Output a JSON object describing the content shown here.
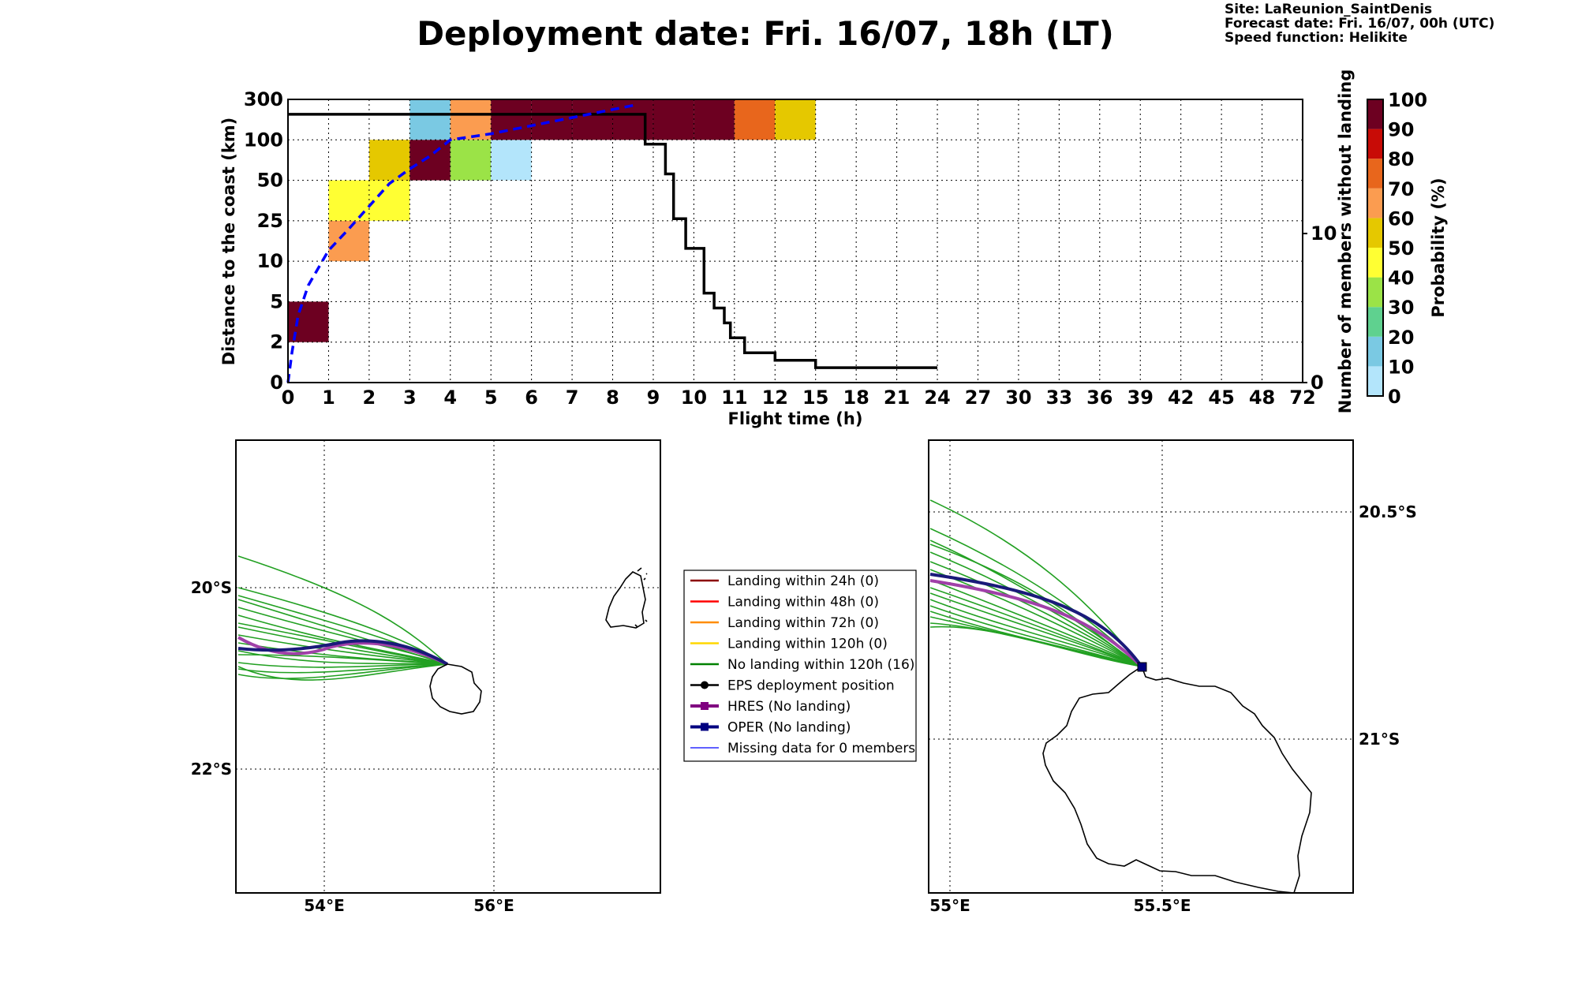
{
  "header": {
    "title": "Deployment date: Fri. 16/07, 18h (LT)",
    "site": "Site: LaReunion_SaintDenis",
    "forecast_date": "Forecast date: Fri. 16/07, 00h (UTC)",
    "speed_function": "Speed function: Helikite"
  },
  "chart_data": [
    {
      "type": "heatmap",
      "xlabel": "Flight time (h)",
      "ylabel": "Distance to the coast (km)",
      "y2label": "Number of members without landing",
      "x_ticks": [
        "0",
        "1",
        "2",
        "3",
        "4",
        "5",
        "6",
        "7",
        "8",
        "9",
        "10",
        "11",
        "12",
        "15",
        "18",
        "21",
        "24",
        "27",
        "30",
        "33",
        "36",
        "39",
        "42",
        "45",
        "48",
        "72"
      ],
      "y_ticks": [
        "0",
        "2",
        "5",
        "10",
        "25",
        "50",
        "100",
        "300"
      ],
      "y2_ticks": [
        "0",
        "10"
      ],
      "y2lim": [
        0,
        19
      ],
      "colorbar": {
        "label": "Probability (%)",
        "ticks": [
          "0",
          "10",
          "20",
          "30",
          "40",
          "50",
          "60",
          "70",
          "80",
          "90",
          "100"
        ],
        "colors": [
          "#b3e5fb",
          "#7ac9e3",
          "#5fd18f",
          "#9be347",
          "#ffff33",
          "#e5c800",
          "#fb9c50",
          "#e8661c",
          "#c80b06",
          "#6d0021"
        ]
      },
      "cells": [
        {
          "t": 0,
          "d": 1,
          "p": 100
        },
        {
          "t": 1,
          "d": 3,
          "p": 60
        },
        {
          "t": 1,
          "d": 4,
          "p": 40
        },
        {
          "t": 2,
          "d": 4,
          "p": 45
        },
        {
          "t": 2,
          "d": 5,
          "p": 55
        },
        {
          "t": 3,
          "d": 5,
          "p": 90
        },
        {
          "t": 3,
          "d": 6,
          "p": 10
        },
        {
          "t": 4,
          "d": 5,
          "p": 35
        },
        {
          "t": 4,
          "d": 6,
          "p": 65
        },
        {
          "t": 5,
          "d": 5,
          "p": 5
        },
        {
          "t": 5,
          "d": 6,
          "p": 100
        },
        {
          "t": 6,
          "d": 6,
          "p": 100
        },
        {
          "t": 7,
          "d": 6,
          "p": 100
        },
        {
          "t": 8,
          "d": 6,
          "p": 100
        },
        {
          "t": 9,
          "d": 6,
          "p": 100
        },
        {
          "t": 10,
          "d": 6,
          "p": 100
        },
        {
          "t": 11,
          "d": 6,
          "p": 75
        },
        {
          "t": 12,
          "d": 6,
          "p": 55
        }
      ],
      "members_without_landing": {
        "x": [
          0,
          8.8,
          8.8,
          9.3,
          9.3,
          9.5,
          9.5,
          9.8,
          9.8,
          10.25,
          10.25,
          10.5,
          10.5,
          10.75,
          10.75,
          10.9,
          10.9,
          11.25,
          11.25,
          12,
          12,
          13,
          13,
          14,
          14,
          15,
          15,
          24
        ],
        "y": [
          18,
          18,
          16,
          16,
          14,
          14,
          11,
          11,
          9,
          9,
          6,
          6,
          5,
          5,
          4,
          4,
          3,
          3,
          2,
          2,
          1.5,
          1.5,
          1.5,
          1.5,
          1.5,
          1.5,
          1,
          1
        ]
      },
      "mean_distance_curve": {
        "x": [
          0,
          0.1,
          0.25,
          0.5,
          1,
          1.5,
          2,
          2.5,
          3,
          3.5,
          4,
          5,
          6,
          7,
          8,
          8.5
        ],
        "y": [
          0,
          1.5,
          4,
          7,
          14,
          22,
          34,
          48,
          64,
          80,
          100,
          130,
          170,
          210,
          250,
          270
        ]
      }
    },
    {
      "type": "map",
      "name": "overview",
      "lon_range": [
        52.9,
        57.9
      ],
      "lat_range": [
        -23.4,
        -18.4
      ],
      "lon_ticks": [
        "54°E",
        "56°E"
      ],
      "lat_ticks": [
        "20°S",
        "22°S"
      ]
    },
    {
      "type": "map",
      "name": "zoom",
      "lon_range": [
        54.95,
        55.95
      ],
      "lat_range": [
        -21.35,
        -20.35
      ],
      "lon_ticks": [
        "55°E",
        "55.5°E"
      ],
      "lat_ticks": [
        "20.5°S",
        "21°S"
      ]
    }
  ],
  "legend": {
    "items": [
      {
        "label": "Landing within 24h (0)",
        "color": "#8b0000",
        "style": "line"
      },
      {
        "label": "Landing within 48h (0)",
        "color": "#ff0000",
        "style": "line"
      },
      {
        "label": "Landing within 72h (0)",
        "color": "#ff8c00",
        "style": "line"
      },
      {
        "label": "Landing within 120h (0)",
        "color": "#ffd700",
        "style": "line"
      },
      {
        "label": "No landing within 120h (16)",
        "color": "#008000",
        "style": "line"
      },
      {
        "label": "EPS deployment position",
        "color": "#000000",
        "style": "dot"
      },
      {
        "label": "HRES (No landing)",
        "color": "#800080",
        "style": "square"
      },
      {
        "label": "OPER (No landing)",
        "color": "#000080",
        "style": "square"
      },
      {
        "label": "Missing data for 0 members",
        "color": "#0000ff",
        "style": "thin"
      }
    ]
  }
}
